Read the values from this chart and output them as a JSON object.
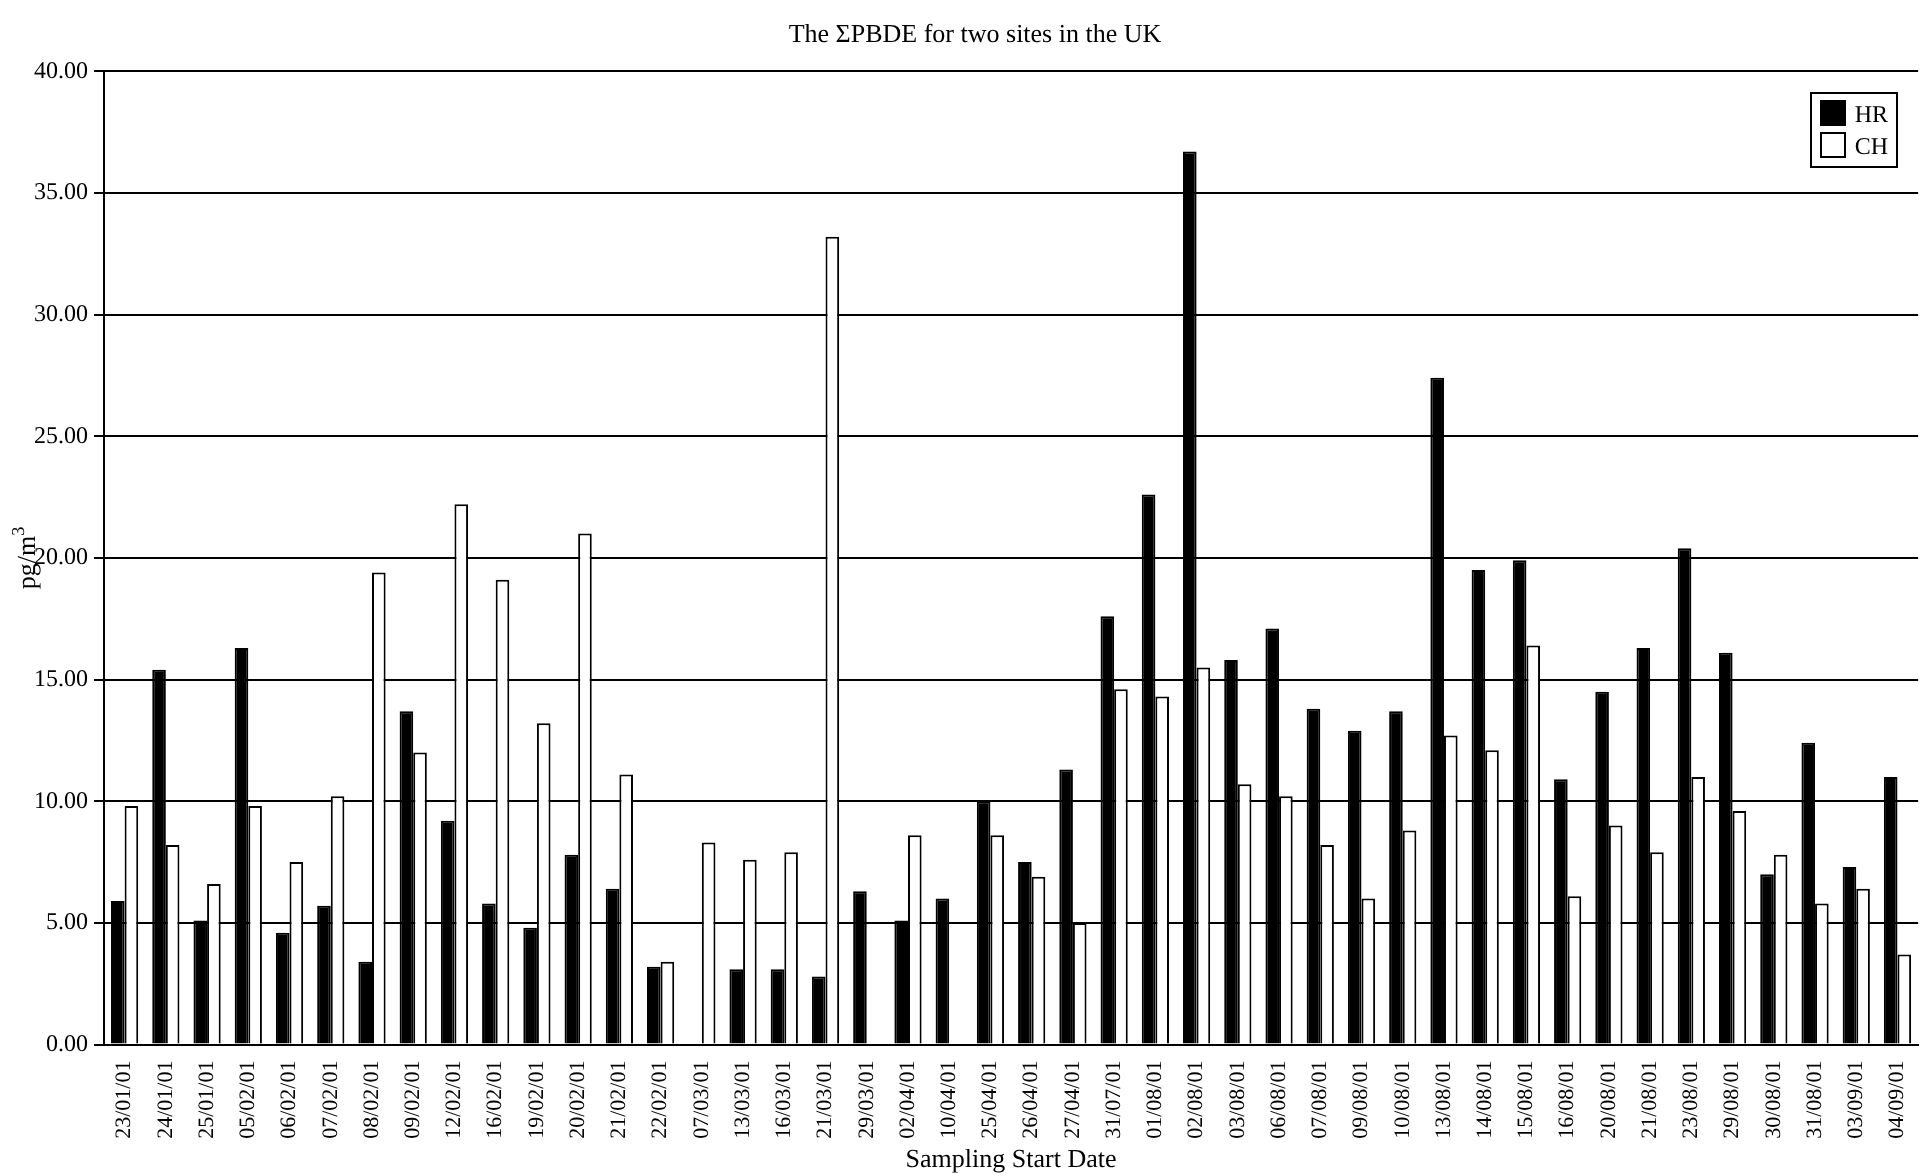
{
  "chart_data": {
    "type": "bar",
    "title": "The ΣPBDE for two sites in the UK",
    "xlabel": "Sampling Start Date",
    "ylabel": "pg/m$^{3}$",
    "categories": [
      "23/01/01",
      "24/01/01",
      "25/01/01",
      "05/02/01",
      "06/02/01",
      "07/02/01",
      "08/02/01",
      "09/02/01",
      "12/02/01",
      "16/02/01",
      "19/02/01",
      "20/02/01",
      "21/02/01",
      "22/02/01",
      "07/03/01",
      "13/03/01",
      "16/03/01",
      "21/03/01",
      "29/03/01",
      "02/04/01",
      "10/04/01",
      "25/04/01",
      "26/04/01",
      "27/04/01",
      "31/07/01",
      "01/08/01",
      "02/08/01",
      "03/08/01",
      "06/08/01",
      "07/08/01",
      "09/08/01",
      "10/08/01",
      "13/08/01",
      "14/08/01",
      "15/08/01",
      "16/08/01",
      "20/08/01",
      "21/08/01",
      "23/08/01",
      "29/08/01",
      "30/08/01",
      "31/08/01",
      "03/09/01",
      "04/09/01"
    ],
    "series": [
      {
        "name": "HR",
        "color": "#000000",
        "values": [
          5.9,
          15.4,
          5.1,
          16.3,
          4.6,
          5.7,
          3.4,
          13.7,
          9.2,
          5.8,
          4.8,
          7.8,
          6.4,
          3.2,
          null,
          3.1,
          3.1,
          2.8,
          6.3,
          5.1,
          6.0,
          10.0,
          7.5,
          11.3,
          17.6,
          22.6,
          36.7,
          15.8,
          17.1,
          13.8,
          12.9,
          13.7,
          27.4,
          19.5,
          19.9,
          10.9,
          14.5,
          16.3,
          20.4,
          16.1,
          7.0,
          12.4,
          7.3,
          11.0
        ]
      },
      {
        "name": "CH",
        "color": "#ffffff",
        "values": [
          9.8,
          8.2,
          6.6,
          9.8,
          7.5,
          10.2,
          19.4,
          12.0,
          22.2,
          19.1,
          13.2,
          21.0,
          11.1,
          3.4,
          8.3,
          7.6,
          7.9,
          33.2,
          null,
          8.6,
          null,
          8.6,
          6.9,
          5.0,
          14.6,
          14.3,
          15.5,
          10.7,
          10.2,
          8.2,
          6.0,
          8.8,
          12.7,
          12.1,
          16.4,
          6.1,
          9.0,
          7.9,
          11.0,
          9.6,
          7.8,
          5.8,
          6.4,
          3.7
        ]
      }
    ],
    "ylim": [
      0,
      40
    ],
    "yticks": [
      {
        "value": 0,
        "label": "0.00"
      },
      {
        "value": 5,
        "label": "5.00"
      },
      {
        "value": 10,
        "label": "10.00"
      },
      {
        "value": 15,
        "label": "15.00"
      },
      {
        "value": 20,
        "label": "20.00"
      },
      {
        "value": 25,
        "label": "25.00"
      },
      {
        "value": 30,
        "label": "30.00"
      },
      {
        "value": 35,
        "label": "35.00"
      },
      {
        "value": 40,
        "label": "40.00"
      }
    ],
    "grid": "y",
    "legend": "top right"
  }
}
